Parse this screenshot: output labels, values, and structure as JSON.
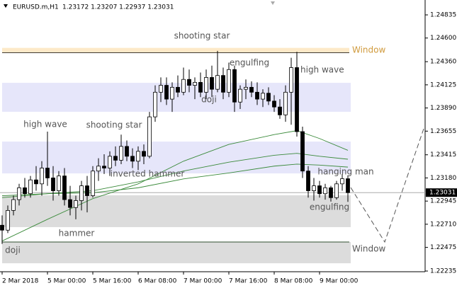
{
  "chart_data": {
    "type": "candlestick",
    "title": "EURUSD.m,H1",
    "info": "1.23172 1.23207 1.22937 1.23031",
    "categories": [
      "2 Mar 2018",
      null,
      null,
      null,
      null,
      null,
      null,
      null,
      "5 Mar 00:00",
      null,
      null,
      null,
      null,
      null,
      null,
      null,
      "5 Mar 16:00",
      null,
      null,
      null,
      null,
      null,
      null,
      null,
      "6 Mar 08:00",
      null,
      null,
      null,
      null,
      null,
      null,
      null,
      "7 Mar 00:00",
      null,
      null,
      null,
      null,
      null,
      null,
      null,
      "7 Mar 16:00",
      null,
      null,
      null,
      null,
      null,
      null,
      null,
      "8 Mar 08:00",
      null,
      null,
      null,
      null,
      null,
      null,
      null,
      "9 Mar 00:00",
      null,
      null,
      null,
      null,
      null
    ],
    "open": [
      1.227,
      1.2265,
      1.2285,
      1.2296,
      1.2308,
      1.2302,
      1.2316,
      1.2312,
      1.2328,
      1.2318,
      1.2305,
      1.232,
      1.2296,
      1.2288,
      1.2295,
      1.231,
      1.23,
      1.2325,
      1.233,
      1.2328,
      1.234,
      1.2336,
      1.235,
      1.234,
      1.2335,
      1.2345,
      1.234,
      1.238,
      1.2405,
      1.2412,
      1.2398,
      1.241,
      1.2405,
      1.2418,
      1.2412,
      1.2415,
      1.2405,
      1.242,
      1.2408,
      1.2422,
      1.2405,
      1.2428,
      1.2395,
      1.2408,
      1.241,
      1.2405,
      1.2398,
      1.2404,
      1.2396,
      1.239,
      1.2382,
      1.2405,
      1.243,
      1.2365,
      1.2325,
      1.2305,
      1.231,
      1.2302,
      1.2308,
      1.2298,
      1.2312,
      1.23172
    ],
    "high": [
      1.228,
      1.229,
      1.23,
      1.2312,
      1.2318,
      1.232,
      1.233,
      1.2335,
      1.2365,
      1.233,
      1.2325,
      1.2328,
      1.231,
      1.23,
      1.2315,
      1.232,
      1.233,
      1.2338,
      1.2342,
      1.2345,
      1.235,
      1.2362,
      1.2356,
      1.2348,
      1.235,
      1.2352,
      1.2385,
      1.2412,
      1.242,
      1.242,
      1.2415,
      1.2422,
      1.243,
      1.2428,
      1.242,
      1.2425,
      1.2428,
      1.2432,
      1.2447,
      1.243,
      1.2435,
      1.2432,
      1.2412,
      1.2418,
      1.2416,
      1.2415,
      1.2408,
      1.241,
      1.2402,
      1.2398,
      1.2412,
      1.244,
      1.2446,
      1.237,
      1.233,
      1.2318,
      1.2315,
      1.2312,
      1.231,
      1.2315,
      1.2322,
      1.23207
    ],
    "low": [
      1.2251,
      1.2262,
      1.228,
      1.229,
      1.2298,
      1.2298,
      1.2305,
      1.23,
      1.231,
      1.2295,
      1.23,
      1.229,
      1.228,
      1.2276,
      1.2285,
      1.2283,
      1.2298,
      1.2315,
      1.2322,
      1.232,
      1.233,
      1.2332,
      1.2335,
      1.2328,
      1.2326,
      1.2332,
      1.2338,
      1.2375,
      1.2395,
      1.2392,
      1.2385,
      1.24,
      1.2402,
      1.2405,
      1.2398,
      1.24,
      1.2398,
      1.24,
      1.2405,
      1.2398,
      1.24,
      1.2385,
      1.2388,
      1.2398,
      1.24,
      1.2392,
      1.239,
      1.2392,
      1.2385,
      1.2378,
      1.2375,
      1.2372,
      1.236,
      1.2318,
      1.2298,
      1.2295,
      1.2298,
      1.2296,
      1.2294,
      1.2296,
      1.2305,
      1.22937
    ],
    "close": [
      1.2265,
      1.2285,
      1.2296,
      1.2308,
      1.2302,
      1.2316,
      1.2312,
      1.2328,
      1.2318,
      1.2305,
      1.232,
      1.2296,
      1.2288,
      1.2295,
      1.231,
      1.23,
      1.2325,
      1.233,
      1.2328,
      1.234,
      1.2336,
      1.235,
      1.234,
      1.2335,
      1.2345,
      1.234,
      1.238,
      1.2405,
      1.2412,
      1.2398,
      1.241,
      1.2405,
      1.2418,
      1.2412,
      1.2415,
      1.2405,
      1.242,
      1.2408,
      1.2422,
      1.2405,
      1.2428,
      1.2395,
      1.2408,
      1.241,
      1.2405,
      1.2398,
      1.2404,
      1.2396,
      1.239,
      1.2382,
      1.2405,
      1.243,
      1.2365,
      1.2325,
      1.2305,
      1.231,
      1.2302,
      1.2308,
      1.2298,
      1.2312,
      1.23172,
      1.23031
    ],
    "moving_averages": [
      {
        "color": "#3a8a3a",
        "x": [
          0,
          8,
          16,
          24,
          32,
          40,
          48,
          52,
          56,
          61
        ],
        "values": [
          1.2254,
          1.2276,
          1.2297,
          1.2312,
          1.2335,
          1.2352,
          1.2362,
          1.2366,
          1.2358,
          1.2346
        ]
      },
      {
        "color": "#3a8a3a",
        "x": [
          0,
          8,
          16,
          24,
          32,
          40,
          48,
          52,
          56,
          61
        ],
        "values": [
          1.2298,
          1.2302,
          1.2305,
          1.2314,
          1.2325,
          1.2334,
          1.2341,
          1.2343,
          1.234,
          1.2337
        ]
      },
      {
        "color": "#3a8a3a",
        "x": [
          0,
          8,
          16,
          24,
          32,
          40,
          48,
          52,
          56,
          61
        ],
        "values": [
          1.23,
          1.2302,
          1.2303,
          1.2308,
          1.2317,
          1.2323,
          1.233,
          1.2332,
          1.2331,
          1.2329
        ]
      }
    ],
    "zones": [
      {
        "low": 1.2445,
        "high": 1.245,
        "color": "#fde9c8"
      },
      {
        "low": 1.23851,
        "high": 1.24145,
        "color": "#e6e6fa"
      },
      {
        "low": 1.23226,
        "high": 1.23549,
        "color": "#e6e6fa"
      },
      {
        "low": 1.22681,
        "high": 1.23004,
        "color": "#dcdcdc"
      },
      {
        "low": 1.22314,
        "high": 1.2253,
        "color": "#dcdcdc"
      }
    ],
    "current_price": 1.23031,
    "annotations": [
      "shooting star",
      "Window",
      "engulfing",
      "high wave",
      "doji",
      "high wave",
      "shooting star",
      "inverted hammer",
      "hanging man",
      "engulfing",
      "hammer",
      "doji",
      "Window"
    ],
    "ylim": [
      1.22228,
      1.24986
    ],
    "yticks": [
      {
        "value": 1.24835,
        "label": "1.24835"
      },
      {
        "value": 1.246,
        "label": "1.24600"
      },
      {
        "value": 1.2436,
        "label": "1.24360"
      },
      {
        "value": 1.24125,
        "label": "1.24125"
      },
      {
        "value": 1.2389,
        "label": "1.23890"
      },
      {
        "value": 1.23655,
        "label": "1.23655"
      },
      {
        "value": 1.23415,
        "label": "1.23415"
      },
      {
        "value": 1.2318,
        "label": "1.23180"
      },
      {
        "value": 1.22945,
        "label": "1.22945"
      },
      {
        "value": 1.2271,
        "label": "1.22710"
      },
      {
        "value": 1.22475,
        "label": "1.22475"
      },
      {
        "value": 1.22235,
        "label": "1.22235"
      }
    ]
  }
}
